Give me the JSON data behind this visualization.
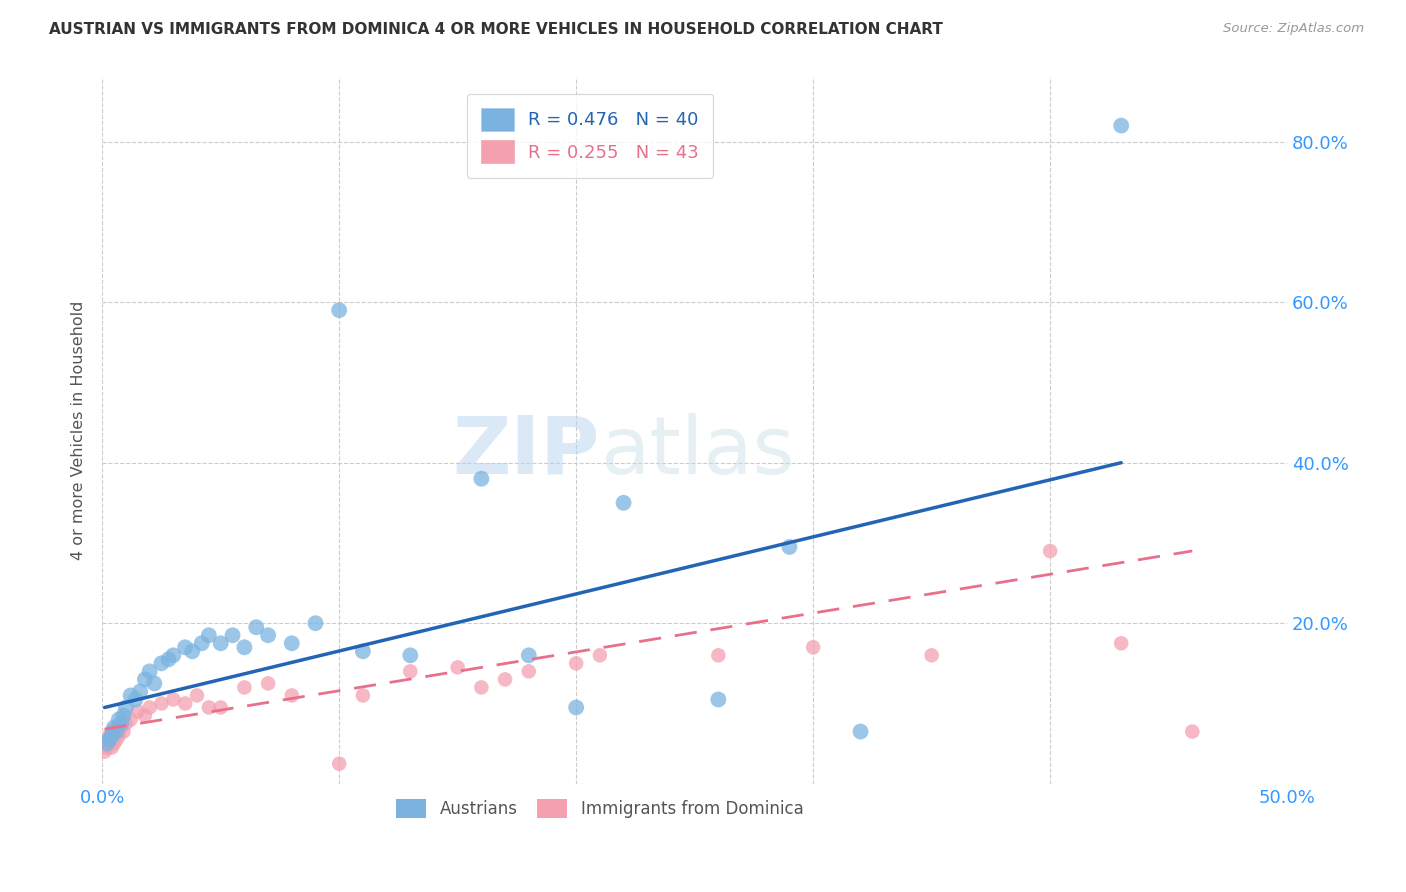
{
  "title": "AUSTRIAN VS IMMIGRANTS FROM DOMINICA 4 OR MORE VEHICLES IN HOUSEHOLD CORRELATION CHART",
  "source": "Source: ZipAtlas.com",
  "ylabel": "4 or more Vehicles in Household",
  "xlim": [
    0.0,
    0.5
  ],
  "ylim": [
    0.0,
    0.88
  ],
  "xticks": [
    0.0,
    0.1,
    0.2,
    0.3,
    0.4,
    0.5
  ],
  "xticklabels": [
    "0.0%",
    "",
    "",
    "",
    "",
    "50.0%"
  ],
  "yticks": [
    0.0,
    0.2,
    0.4,
    0.6,
    0.8
  ],
  "yticklabels": [
    "",
    "20.0%",
    "40.0%",
    "60.0%",
    "80.0%"
  ],
  "grid_color": "#cccccc",
  "background_color": "#ffffff",
  "legend_r1": "R = 0.476",
  "legend_n1": "N = 40",
  "legend_r2": "R = 0.255",
  "legend_n2": "N = 43",
  "austrians_color": "#7ab3e0",
  "dominica_color": "#f4a0b0",
  "trendline1_color": "#2464b4",
  "trendline2_color": "#e8708a",
  "watermark_zip": "ZIP",
  "watermark_atlas": "atlas",
  "austrians_x": [
    0.002,
    0.003,
    0.004,
    0.005,
    0.006,
    0.007,
    0.008,
    0.009,
    0.01,
    0.012,
    0.014,
    0.016,
    0.018,
    0.02,
    0.022,
    0.025,
    0.028,
    0.03,
    0.035,
    0.038,
    0.042,
    0.045,
    0.05,
    0.055,
    0.06,
    0.065,
    0.07,
    0.08,
    0.09,
    0.1,
    0.11,
    0.13,
    0.16,
    0.18,
    0.2,
    0.22,
    0.26,
    0.29,
    0.32,
    0.43
  ],
  "austrians_y": [
    0.05,
    0.055,
    0.06,
    0.07,
    0.065,
    0.08,
    0.075,
    0.085,
    0.095,
    0.11,
    0.105,
    0.115,
    0.13,
    0.14,
    0.125,
    0.15,
    0.155,
    0.16,
    0.17,
    0.165,
    0.175,
    0.185,
    0.175,
    0.185,
    0.17,
    0.195,
    0.185,
    0.175,
    0.2,
    0.59,
    0.165,
    0.16,
    0.38,
    0.16,
    0.095,
    0.35,
    0.105,
    0.295,
    0.065,
    0.82
  ],
  "dominica_x": [
    0.001,
    0.002,
    0.002,
    0.003,
    0.003,
    0.004,
    0.004,
    0.005,
    0.005,
    0.006,
    0.006,
    0.007,
    0.008,
    0.009,
    0.01,
    0.012,
    0.015,
    0.018,
    0.02,
    0.025,
    0.03,
    0.035,
    0.04,
    0.045,
    0.05,
    0.06,
    0.07,
    0.08,
    0.1,
    0.11,
    0.13,
    0.15,
    0.16,
    0.17,
    0.18,
    0.2,
    0.21,
    0.26,
    0.3,
    0.35,
    0.4,
    0.43,
    0.46
  ],
  "dominica_y": [
    0.04,
    0.045,
    0.05,
    0.055,
    0.06,
    0.045,
    0.065,
    0.05,
    0.06,
    0.055,
    0.07,
    0.06,
    0.07,
    0.065,
    0.075,
    0.08,
    0.09,
    0.085,
    0.095,
    0.1,
    0.105,
    0.1,
    0.11,
    0.095,
    0.095,
    0.12,
    0.125,
    0.11,
    0.025,
    0.11,
    0.14,
    0.145,
    0.12,
    0.13,
    0.14,
    0.15,
    0.16,
    0.16,
    0.17,
    0.16,
    0.29,
    0.175,
    0.065
  ],
  "trendline1_x": [
    0.001,
    0.43
  ],
  "trendline1_y": [
    0.095,
    0.4
  ],
  "trendline2_x": [
    0.001,
    0.46
  ],
  "trendline2_y": [
    0.068,
    0.29
  ]
}
